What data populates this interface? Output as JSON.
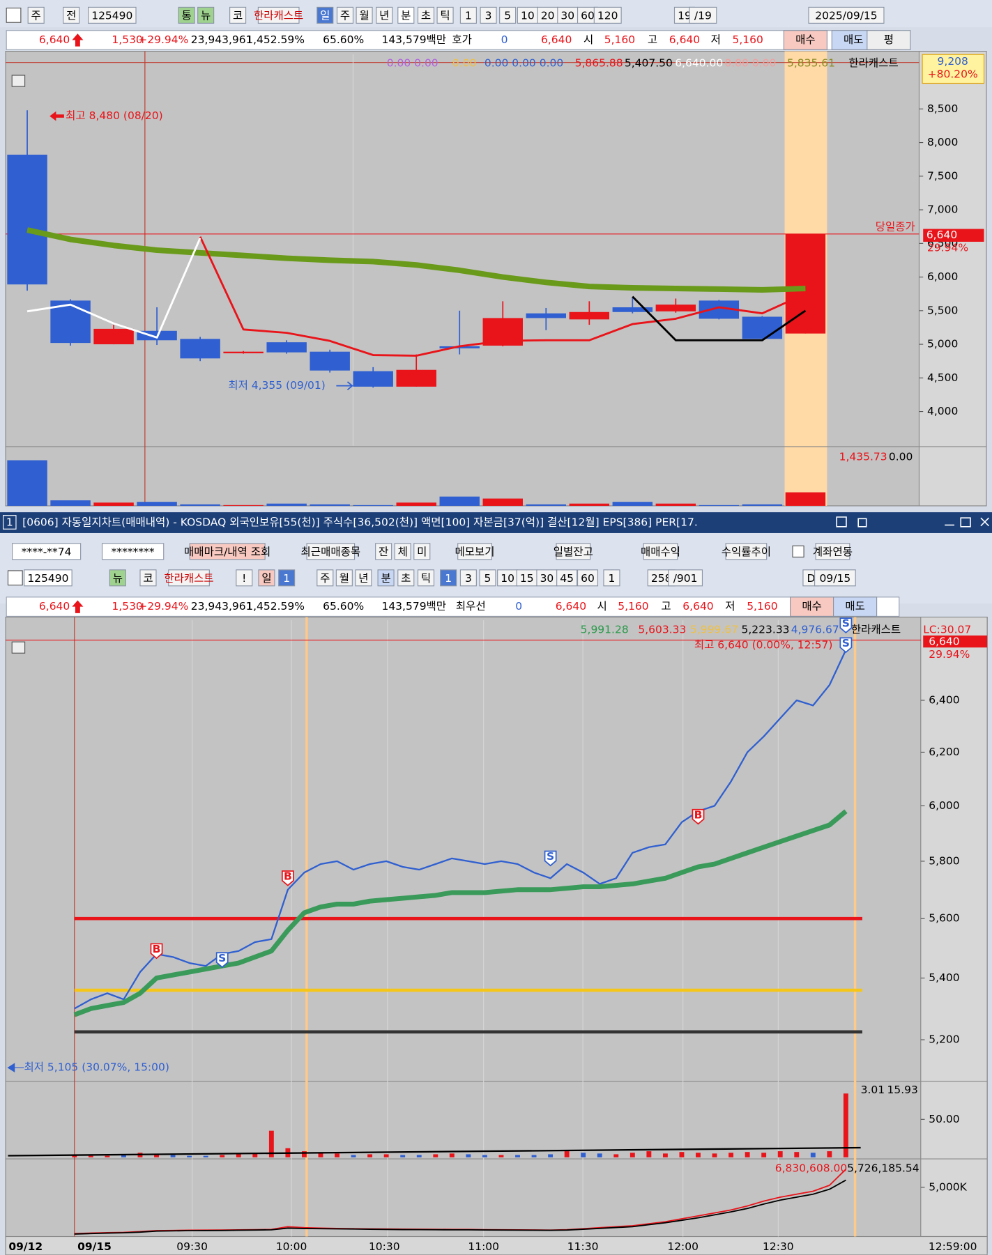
{
  "toolbar1": {
    "items": [
      "주",
      "전",
      "125490",
      "통",
      "뉴",
      "코",
      "한라캐스트",
      "일",
      "주",
      "월",
      "년",
      "분",
      "초",
      "틱",
      "1",
      "3",
      "5",
      "10",
      "20",
      "30",
      "60",
      "120",
      "19",
      "/19",
      "2025/09/15"
    ]
  },
  "quote1": {
    "items": [
      "6,640",
      "1,530",
      "+29.94%",
      "23,943,961",
      "1,452.59%",
      "65.60%",
      "143,579백만",
      "호가",
      "0",
      "6,640",
      "시",
      "5,160",
      "고",
      "6,640",
      "저",
      "5,160",
      "매수",
      "매도",
      "평"
    ]
  },
  "daily_chart": {
    "type": "candlestick",
    "legend": [
      "0.00 0.00",
      "0.00",
      "0.00 0.00 0.00",
      "5,865.88",
      "5,407.50",
      "6,640.00",
      "0.00 0.00",
      "5,835.61",
      "한라캐스트"
    ],
    "ylim": [
      3490,
      9310
    ],
    "yticks": [
      {
        "value": 8500,
        "label": "8,500"
      },
      {
        "value": 8000,
        "label": "8,000"
      },
      {
        "value": 7500,
        "label": "7,500"
      },
      {
        "value": 7000,
        "label": "7,000"
      },
      {
        "value": 6500,
        "label": "6,500"
      },
      {
        "value": 6000,
        "label": "6,000"
      },
      {
        "value": 5500,
        "label": "5,500"
      },
      {
        "value": 5000,
        "label": "5,000"
      },
      {
        "value": 4500,
        "label": "4,500"
      },
      {
        "value": 4000,
        "label": "4,000"
      }
    ],
    "up_color": "#e8141a",
    "down_color": "#2f5fd0",
    "candles": [
      {
        "open": 7820,
        "high": 8480,
        "low": 5798,
        "close": 5890
      },
      {
        "open": 5650,
        "high": 5670,
        "low": 4980,
        "close": 5020
      },
      {
        "open": 5000,
        "high": 5290,
        "low": 5000,
        "close": 5230
      },
      {
        "open": 5200,
        "high": 5550,
        "low": 4990,
        "close": 5060
      },
      {
        "open": 5080,
        "high": 5110,
        "low": 4750,
        "close": 4790
      },
      {
        "open": 4870,
        "high": 4900,
        "low": 4860,
        "close": 4890
      },
      {
        "open": 5030,
        "high": 5060,
        "low": 4860,
        "close": 4880
      },
      {
        "open": 4890,
        "high": 4920,
        "low": 4580,
        "close": 4610
      },
      {
        "open": 4600,
        "high": 4660,
        "low": 4355,
        "close": 4370
      },
      {
        "open": 4370,
        "high": 4850,
        "low": 4370,
        "close": 4620
      },
      {
        "open": 4970,
        "high": 5500,
        "low": 4850,
        "close": 4940
      },
      {
        "open": 4980,
        "high": 5640,
        "low": 4970,
        "close": 5390
      },
      {
        "open": 5460,
        "high": 5540,
        "low": 5210,
        "close": 5390
      },
      {
        "open": 5370,
        "high": 5640,
        "low": 5290,
        "close": 5480
      },
      {
        "open": 5550,
        "high": 5700,
        "low": 5460,
        "close": 5480
      },
      {
        "open": 5490,
        "high": 5680,
        "low": 5470,
        "close": 5590
      },
      {
        "open": 5650,
        "high": 5660,
        "low": 5370,
        "close": 5380
      },
      {
        "open": 5410,
        "high": 5420,
        "low": 5080,
        "close": 5080
      },
      {
        "open": 5160,
        "high": 6640,
        "low": 5160,
        "close": 6640
      }
    ],
    "series": [
      {
        "name": "ma",
        "color": "#6a9a1a",
        "values": [
          6700,
          6560,
          6470,
          6400,
          6360,
          6320,
          6280,
          6250,
          6230,
          6180,
          6100,
          6000,
          5920,
          5860,
          5840,
          5830,
          5820,
          5810,
          5830
        ]
      },
      {
        "name": "red",
        "color": "#e8141a",
        "values": [
          null,
          null,
          null,
          null,
          6600,
          5220,
          5170,
          5050,
          4840,
          4830,
          4970,
          5050,
          5060,
          5060,
          5300,
          5380,
          5550,
          5460,
          5750
        ]
      },
      {
        "name": "white",
        "color": "#ffffff",
        "values": [
          5490,
          5590,
          5310,
          5100,
          6580,
          null,
          null,
          null,
          null,
          null,
          null,
          null,
          null,
          null,
          null,
          null,
          null,
          null,
          null
        ]
      },
      {
        "name": "black",
        "color": "#000000",
        "values": [
          null,
          null,
          null,
          null,
          null,
          null,
          null,
          null,
          null,
          null,
          null,
          null,
          null,
          null,
          5710,
          5060,
          5060,
          5060,
          5500
        ]
      }
    ],
    "volume": [
      1820,
      220,
      130,
      160,
      60,
      30,
      90,
      60,
      30,
      130,
      370,
      290,
      60,
      90,
      160,
      90,
      30,
      60,
      540
    ],
    "volume_ylim": [
      0,
      2300
    ],
    "volume_legend": [
      "1,435.73",
      "0.00"
    ],
    "annotations": {
      "high": "최고 8,480 (08/20)",
      "low": "최저 4,355 (09/01)",
      "close_label": "당일종가",
      "close_price": "6,640",
      "close_pct": "29.94%",
      "upper_price": "9,208",
      "upper_pct": "+80.20%"
    }
  },
  "window_title": {
    "num": "1",
    "text": "[0606] 자동일지차트(매매내역) - KOSDAQ 외국인보유[55(천)] 주식수[36,502(천)] 액면[100] 자본금[37(억)] 결산[12월] EPS[386] PER[17."
  },
  "toolbar2": {
    "items": [
      "****-**74",
      "********",
      "매매마크/내역 조회",
      "최근매매종목",
      "잔",
      "체",
      "미",
      "메모보기",
      "일별잔고",
      "매매수익",
      "수익률추이",
      "계좌연동"
    ]
  },
  "toolbar3": {
    "items": [
      "125490",
      "뉴",
      "코",
      "한라캐스트",
      "!",
      "일",
      "1",
      "주",
      "월",
      "년",
      "분",
      "초",
      "틱",
      "1",
      "3",
      "5",
      "10",
      "15",
      "30",
      "45",
      "60",
      "1",
      "258",
      "/901",
      "D",
      "09/15"
    ]
  },
  "quote2": {
    "items": [
      "6,640",
      "1,530",
      "+29.94%",
      "23,943,961",
      "1,452.59%",
      "65.60%",
      "143,579백만",
      "최우선",
      "0",
      "6,640",
      "시",
      "5,160",
      "고",
      "6,640",
      "저",
      "5,160",
      "매수",
      "매도"
    ]
  },
  "minute_chart": {
    "type": "line",
    "log": true,
    "legend": [
      "5,991.28",
      "5,603.33",
      "5,999.67",
      "5,223.33",
      "4,976.67",
      "한라캐스트",
      "LC:30.07"
    ],
    "ylim": [
      5072,
      6721
    ],
    "yticks": [
      {
        "value": 6400,
        "label": "6,400"
      },
      {
        "value": 6200,
        "label": "6,200"
      },
      {
        "value": 6000,
        "label": "6,000"
      },
      {
        "value": 5800,
        "label": "5,800"
      },
      {
        "value": 5600,
        "label": "5,600"
      },
      {
        "value": 5400,
        "label": "5,400"
      },
      {
        "value": 5200,
        "label": "5,200"
      }
    ],
    "x": [
      "09:00",
      "09:05",
      "09:10",
      "09:15",
      "09:20",
      "09:25",
      "09:30",
      "09:35",
      "09:40",
      "09:45",
      "09:50",
      "09:55",
      "10:00",
      "10:05",
      "10:10",
      "10:15",
      "10:20",
      "10:25",
      "10:30",
      "10:35",
      "10:40",
      "10:45",
      "10:50",
      "10:55",
      "11:00",
      "11:05",
      "11:10",
      "11:15",
      "11:20",
      "11:25",
      "11:30",
      "11:35",
      "11:40",
      "11:45",
      "11:50",
      "11:55",
      "12:00",
      "12:05",
      "12:10",
      "12:15",
      "12:20",
      "12:25",
      "12:30",
      "12:35",
      "12:40",
      "12:45",
      "12:50",
      "12:55"
    ],
    "series": [
      {
        "name": "price",
        "color": "#2f5fd0",
        "values": [
          5300,
          5330,
          5350,
          5330,
          5420,
          5480,
          5470,
          5450,
          5440,
          5480,
          5490,
          5520,
          5530,
          5700,
          5760,
          5790,
          5800,
          5770,
          5790,
          5800,
          5780,
          5770,
          5790,
          5810,
          5800,
          5790,
          5800,
          5790,
          5760,
          5740,
          5790,
          5760,
          5720,
          5740,
          5830,
          5850,
          5860,
          5940,
          5980,
          6000,
          6090,
          6200,
          6260,
          6330,
          6400,
          6380,
          6460,
          6600
        ]
      },
      {
        "name": "ma",
        "color": "#3a9a5a",
        "values": [
          5280,
          5300,
          5310,
          5320,
          5350,
          5400,
          5410,
          5420,
          5430,
          5440,
          5450,
          5470,
          5490,
          5560,
          5620,
          5640,
          5650,
          5650,
          5660,
          5665,
          5670,
          5675,
          5680,
          5690,
          5690,
          5690,
          5695,
          5700,
          5700,
          5700,
          5705,
          5710,
          5710,
          5715,
          5720,
          5730,
          5740,
          5760,
          5780,
          5790,
          5810,
          5830,
          5850,
          5870,
          5890,
          5910,
          5930,
          5980
        ]
      }
    ],
    "levels": [
      {
        "value": 5600,
        "color": "#e8141a"
      },
      {
        "value": 5360,
        "color": "#f5c518"
      },
      {
        "value": 5225,
        "color": "#333333"
      }
    ],
    "trades": [
      {
        "side": "B",
        "x": "09:25",
        "price": 5490
      },
      {
        "side": "S",
        "x": "09:45",
        "price": 5460
      },
      {
        "side": "B",
        "x": "10:05",
        "price": 5740
      },
      {
        "side": "S",
        "x": "11:25",
        "price": 5810
      },
      {
        "side": "B",
        "x": "12:10",
        "price": 5960
      },
      {
        "side": "S",
        "x": "12:55",
        "price": 6620
      },
      {
        "side": "S",
        "x": "12:55",
        "price": 6700
      }
    ],
    "annotations": {
      "high": "최고 6,640 (0.00%, 12:57)",
      "low": "최저 5,105 (30.07%, 15:00)",
      "last_price": "6,640",
      "last_pct": "29.94%"
    },
    "volume": [
      3,
      2,
      2,
      3,
      6,
      4,
      3,
      2,
      2,
      3,
      4,
      5,
      35,
      12,
      8,
      6,
      5,
      3,
      4,
      4,
      3,
      3,
      4,
      5,
      4,
      3,
      3,
      3,
      3,
      4,
      8,
      6,
      5,
      4,
      6,
      8,
      5,
      7,
      6,
      5,
      6,
      7,
      6,
      8,
      7,
      6,
      8,
      84
    ],
    "volume_ylim": [
      0,
      98
    ],
    "volume_yticks": [
      {
        "value": 50,
        "label": "50.00"
      }
    ],
    "volume_legend": [
      "3.01",
      "15.93"
    ],
    "obv": [
      {
        "name": "obv",
        "color": "#e8141a",
        "values": [
          300000,
          350000,
          400000,
          420000,
          500000,
          600000,
          620000,
          640000,
          650000,
          660000,
          680000,
          700000,
          720000,
          1000000,
          900000,
          850000,
          820000,
          800000,
          780000,
          760000,
          750000,
          740000,
          730000,
          720000,
          720000,
          700000,
          690000,
          680000,
          670000,
          650000,
          700000,
          800000,
          900000,
          1000000,
          1100000,
          1300000,
          1500000,
          1800000,
          2100000,
          2400000,
          2700000,
          3100000,
          3600000,
          4000000,
          4300000,
          4600000,
          5200000,
          6830608
        ]
      },
      {
        "name": "signal",
        "color": "#000000",
        "values": [
          250000,
          300000,
          350000,
          380000,
          450000,
          550000,
          580000,
          600000,
          610000,
          620000,
          640000,
          660000,
          680000,
          850000,
          820000,
          800000,
          780000,
          760000,
          740000,
          720000,
          710000,
          700000,
          690000,
          680000,
          680000,
          670000,
          660000,
          650000,
          640000,
          630000,
          660000,
          740000,
          830000,
          920000,
          1000000,
          1200000,
          1400000,
          1650000,
          1900000,
          2200000,
          2500000,
          2850000,
          3300000,
          3700000,
          4000000,
          4300000,
          4800000,
          5726185.54
        ]
      }
    ],
    "obv_ylim": [
      0,
      7800000
    ],
    "obv_yticks": [
      {
        "value": 5000000,
        "label": "5,000K"
      }
    ],
    "obv_legend": [
      "6,830,608.00",
      "5,726,185.54"
    ],
    "x_labels": [
      "09/12",
      "09/15",
      "09:30",
      "10:00",
      "10:30",
      "11:00",
      "11:30",
      "12:00",
      "12:30",
      "12:59:00"
    ]
  }
}
